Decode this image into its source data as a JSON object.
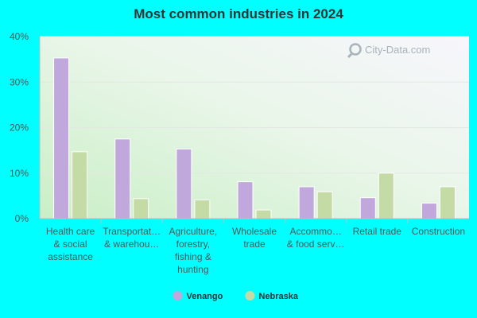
{
  "chart_data": {
    "type": "bar",
    "title": "Most common industries in 2024",
    "xlabel": "",
    "ylabel": "",
    "ylim": [
      0,
      40
    ],
    "yticks": [
      0,
      10,
      20,
      30,
      40
    ],
    "ytick_labels": [
      "0%",
      "10%",
      "20%",
      "30%",
      "40%"
    ],
    "grid": true,
    "legend_position": "bottom-center",
    "categories": [
      [
        "Health care",
        "& social",
        "assistance"
      ],
      [
        "Transportat…",
        "& warehou…"
      ],
      [
        "Agriculture,",
        "forestry,",
        "fishing &",
        "hunting"
      ],
      [
        "Wholesale",
        "trade"
      ],
      [
        "Accommo…",
        "& food serv…"
      ],
      [
        "Retail trade"
      ],
      [
        "Construction"
      ]
    ],
    "series": [
      {
        "name": "Venango",
        "color": "#c0a8dc",
        "stroke": "#ffffff",
        "values": [
          35.3,
          17.5,
          15.3,
          8.1,
          7.0,
          4.6,
          3.4
        ]
      },
      {
        "name": "Nebraska",
        "color": "#c5dba6",
        "stroke": "#ffffff",
        "values": [
          14.7,
          4.4,
          4.1,
          1.9,
          5.9,
          10.0,
          7.0
        ]
      }
    ]
  },
  "watermark": {
    "text": "City-Data.com",
    "icon": "magnifier-icon"
  }
}
